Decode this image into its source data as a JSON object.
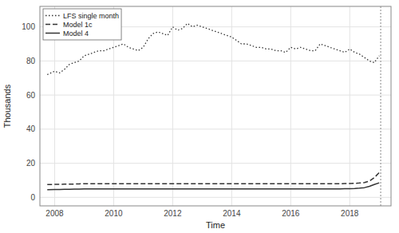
{
  "chart_data": {
    "type": "line",
    "xlabel": "Time",
    "ylabel": "Thousands",
    "x": [
      2007.75,
      2008.0,
      2008.17,
      2008.33,
      2008.5,
      2008.67,
      2008.83,
      2009.0,
      2009.17,
      2009.33,
      2009.5,
      2009.67,
      2009.83,
      2010.0,
      2010.17,
      2010.33,
      2010.5,
      2010.67,
      2010.83,
      2011.0,
      2011.17,
      2011.33,
      2011.5,
      2011.67,
      2011.83,
      2012.0,
      2012.17,
      2012.33,
      2012.5,
      2012.67,
      2012.83,
      2013.0,
      2013.17,
      2013.33,
      2013.5,
      2013.67,
      2013.83,
      2014.0,
      2014.17,
      2014.33,
      2014.5,
      2014.67,
      2014.83,
      2015.0,
      2015.17,
      2015.33,
      2015.5,
      2015.67,
      2015.83,
      2016.0,
      2016.17,
      2016.33,
      2016.5,
      2016.67,
      2016.83,
      2017.0,
      2017.17,
      2017.33,
      2017.5,
      2017.67,
      2017.83,
      2018.0,
      2018.17,
      2018.33,
      2018.5,
      2018.67,
      2018.83,
      2019.0
    ],
    "series": [
      {
        "name": "LFS single month",
        "color": "#333333",
        "line_style": "dotted",
        "values": [
          72,
          74,
          73,
          75,
          78,
          79,
          80,
          83,
          84,
          85,
          86,
          86,
          87,
          88,
          89,
          90,
          88,
          87,
          86,
          88,
          93,
          96,
          97,
          96,
          95,
          100,
          98,
          99,
          102,
          100,
          101,
          100,
          99,
          98,
          97,
          96,
          95,
          94,
          92,
          90,
          90,
          89,
          88,
          88,
          87,
          87,
          86,
          86,
          85,
          88,
          87,
          88,
          87,
          86,
          86,
          90,
          89,
          88,
          87,
          86,
          85,
          87,
          85,
          84,
          82,
          80,
          79,
          83
        ]
      },
      {
        "name": "Model 1c",
        "color": "#333333",
        "line_style": "dashed",
        "values": [
          7.5,
          7.6,
          7.65,
          7.7,
          7.75,
          7.8,
          7.9,
          8.0,
          8.0,
          8.0,
          8.0,
          8.0,
          8.0,
          8.0,
          8.0,
          8.0,
          8.0,
          8.0,
          8.0,
          8.0,
          8.0,
          8.0,
          8.0,
          8.0,
          8.0,
          8.0,
          8.0,
          8.0,
          8.0,
          8.0,
          8.0,
          8.0,
          8.0,
          8.0,
          8.0,
          8.0,
          8.0,
          8.0,
          8.0,
          8.0,
          8.0,
          8.0,
          8.0,
          8.0,
          8.0,
          8.0,
          8.0,
          8.0,
          8.0,
          8.0,
          8.0,
          8.0,
          8.0,
          8.0,
          8.0,
          8.0,
          8.0,
          8.0,
          8.0,
          8.0,
          8.05,
          8.1,
          8.2,
          8.4,
          8.7,
          9.5,
          11.5,
          14.5
        ]
      },
      {
        "name": "Model 4",
        "color": "#333333",
        "line_style": "solid",
        "values": [
          4.5,
          4.6,
          4.65,
          4.7,
          4.75,
          4.8,
          4.85,
          4.9,
          5.0,
          5.0,
          5.0,
          5.0,
          5.0,
          5.0,
          5.0,
          5.0,
          5.0,
          5.0,
          5.0,
          5.0,
          5.0,
          5.0,
          5.0,
          5.0,
          5.0,
          5.0,
          5.0,
          5.0,
          5.0,
          5.0,
          5.0,
          5.0,
          5.0,
          5.0,
          5.0,
          5.0,
          5.0,
          5.0,
          5.0,
          5.0,
          5.0,
          5.0,
          5.0,
          5.0,
          5.0,
          5.0,
          5.0,
          5.0,
          5.0,
          5.0,
          5.0,
          5.0,
          5.0,
          5.0,
          5.0,
          5.0,
          5.0,
          5.0,
          5.0,
          5.0,
          5.05,
          5.1,
          5.2,
          5.4,
          5.7,
          6.5,
          7.5,
          8.5
        ]
      }
    ],
    "vlines": [
      2019.05
    ],
    "xlim": [
      2007.5,
      2019.4
    ],
    "ylim": [
      -5,
      112
    ],
    "xticks": [
      2008,
      2010,
      2012,
      2014,
      2016,
      2018
    ],
    "yticks": [
      0,
      20,
      40,
      60,
      80,
      100
    ],
    "grid": true,
    "legend": "upper left"
  }
}
